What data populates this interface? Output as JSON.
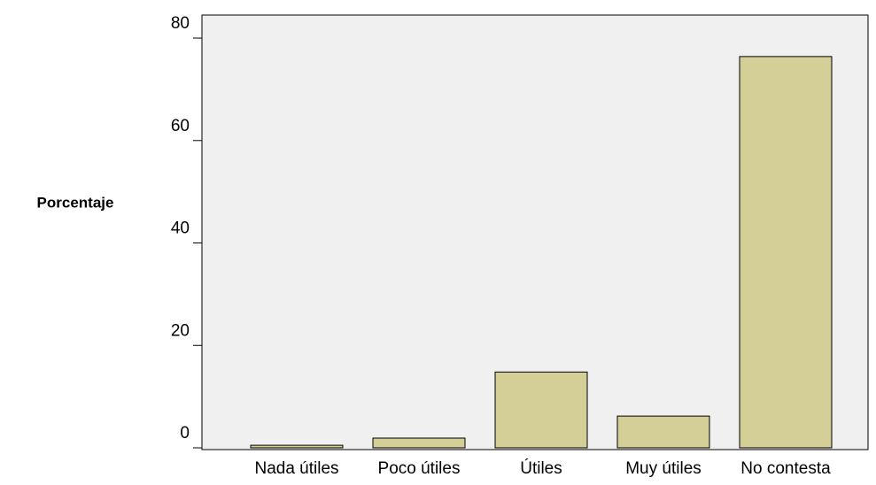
{
  "chart_data": {
    "type": "bar",
    "y_label": "Porcentaje",
    "categories": [
      "Nada útiles",
      "Poco útiles",
      "Útiles",
      "Muy útiles",
      "No contesta"
    ],
    "values": [
      0.5,
      1.9,
      14.8,
      6.2,
      76.4
    ],
    "color": "#d4cf97",
    "ylim": [
      0,
      84.5
    ],
    "yticks": [
      0,
      20,
      40,
      60,
      80
    ],
    "grid": false
  }
}
